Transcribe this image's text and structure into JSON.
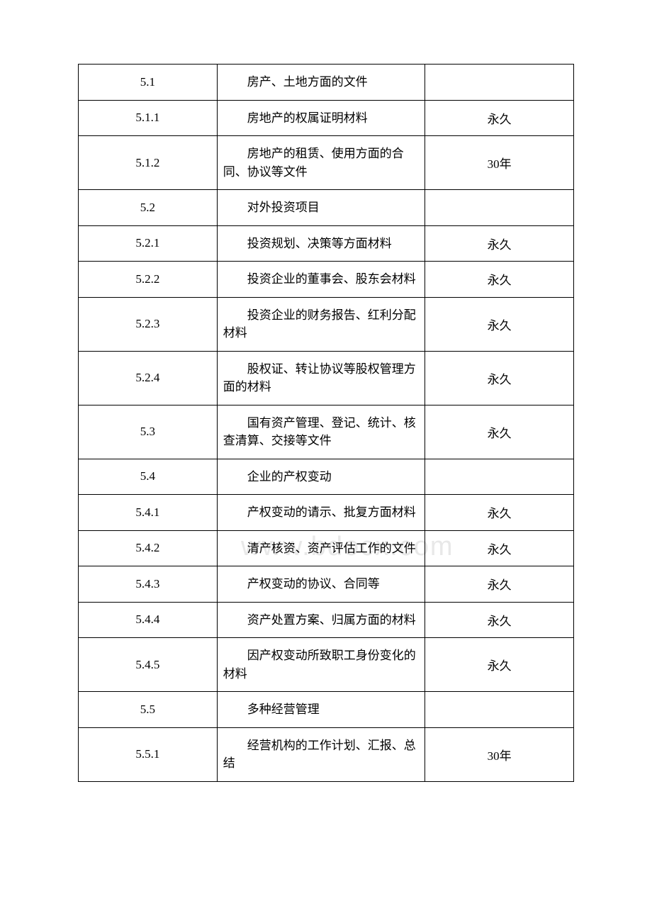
{
  "table": {
    "rows": [
      {
        "id": "5.1",
        "desc": "房产、土地方面的文件",
        "duration": ""
      },
      {
        "id": "5.1.1",
        "desc": "房地产的权属证明材料",
        "duration": "永久"
      },
      {
        "id": "5.1.2",
        "desc": "房地产的租赁、使用方面的合同、协议等文件",
        "duration": "30年"
      },
      {
        "id": "5.2",
        "desc": "对外投资项目",
        "duration": ""
      },
      {
        "id": "5.2.1",
        "desc": "投资规划、决策等方面材料",
        "duration": "永久"
      },
      {
        "id": "5.2.2",
        "desc": "投资企业的董事会、股东会材料",
        "duration": "永久"
      },
      {
        "id": "5.2.3",
        "desc": "投资企业的财务报告、红利分配材料",
        "duration": "永久"
      },
      {
        "id": "5.2.4",
        "desc": "股权证、转让协议等股权管理方面的材料",
        "duration": "永久"
      },
      {
        "id": "5.3",
        "desc": "国有资产管理、登记、统计、核查清算、交接等文件",
        "duration": "永久"
      },
      {
        "id": "5.4",
        "desc": "企业的产权变动",
        "duration": ""
      },
      {
        "id": "5.4.1",
        "desc": "产权变动的请示、批复方面材料",
        "duration": "永久"
      },
      {
        "id": "5.4.2",
        "desc": "清产核资、资产评估工作的文件",
        "duration": "永久"
      },
      {
        "id": "5.4.3",
        "desc": "产权变动的协议、合同等",
        "duration": "永久"
      },
      {
        "id": "5.4.4",
        "desc": "资产处置方案、归属方面的材料",
        "duration": "永久"
      },
      {
        "id": "5.4.5",
        "desc": "因产权变动所致职工身份变化的材料",
        "duration": "永久"
      },
      {
        "id": "5.5",
        "desc": "多种经营管理",
        "duration": ""
      },
      {
        "id": "5.5.1",
        "desc": "经营机构的工作计划、汇报、总结",
        "duration": "30年"
      }
    ]
  },
  "watermark": "www.bdocx.com",
  "styling": {
    "background_color": "#ffffff",
    "border_color": "#000000",
    "text_color": "#000000",
    "watermark_color": "#e8e8e8",
    "font_size": 17,
    "col_widths": [
      "28%",
      "42%",
      "30%"
    ]
  }
}
